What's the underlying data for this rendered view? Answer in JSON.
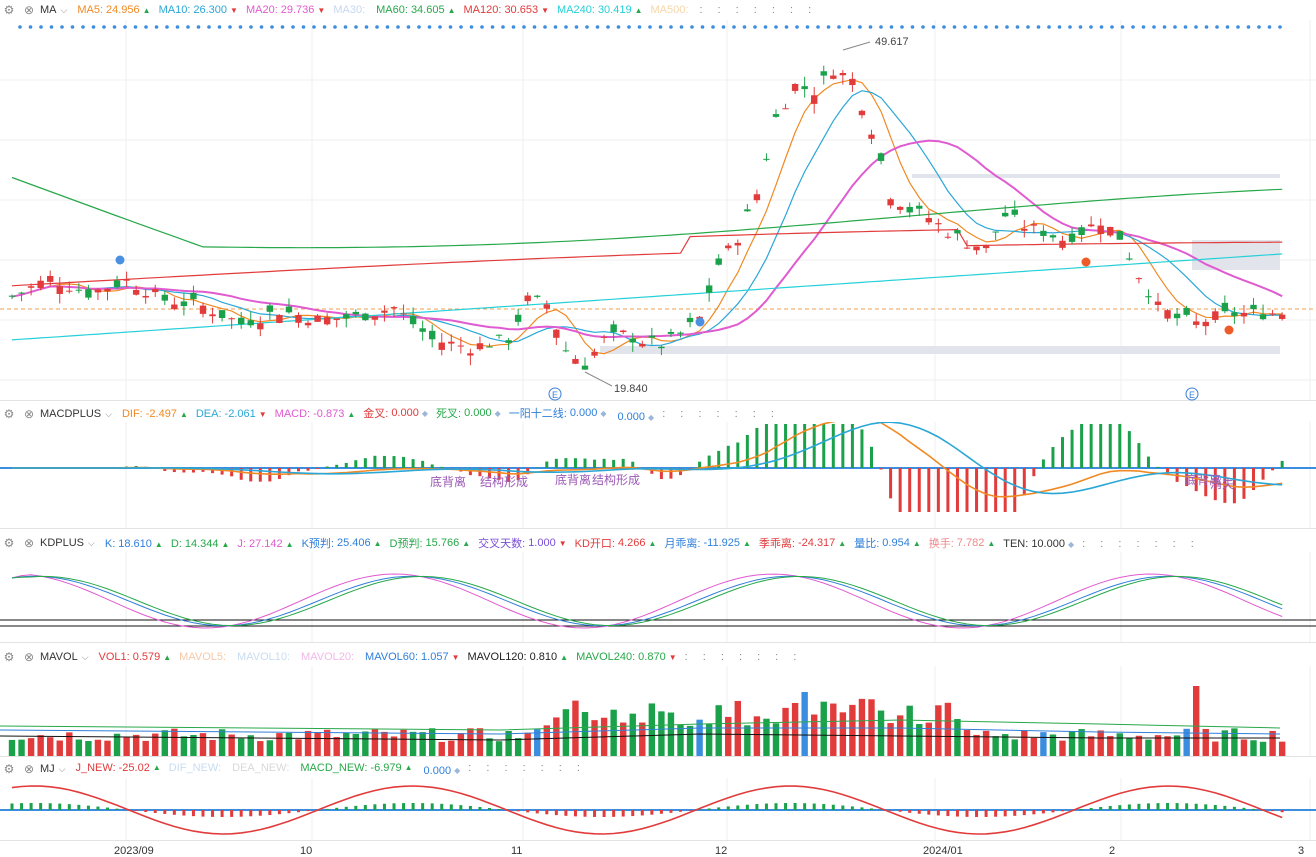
{
  "panels": {
    "ma": {
      "name": "MA",
      "items": [
        {
          "label": "MA5:",
          "value": "24.956",
          "color": "#f08a24",
          "dir": "up"
        },
        {
          "label": "MA10:",
          "value": "26.300",
          "color": "#2aa7d6",
          "dir": "down"
        },
        {
          "label": "MA20:",
          "value": "29.736",
          "color": "#e05ad0",
          "dir": "down"
        },
        {
          "label": "MA30:",
          "value": "",
          "color": "#c7d7ee",
          "dir": ""
        },
        {
          "label": "MA60:",
          "value": "34.605",
          "color": "#27a84a",
          "dir": "up"
        },
        {
          "label": "MA120:",
          "value": "30.653",
          "color": "#e23b3b",
          "dir": "down"
        },
        {
          "label": "MA240:",
          "value": "30.419",
          "color": "#25d0d8",
          "dir": "up"
        },
        {
          "label": "MA500:",
          "value": "",
          "color": "#f5d6a8",
          "dir": ""
        }
      ]
    },
    "macd": {
      "name": "MACDPLUS",
      "items": [
        {
          "label": "DIF:",
          "value": "-2.497",
          "color": "#f08a24",
          "dir": "up"
        },
        {
          "label": "DEA:",
          "value": "-2.061",
          "color": "#2aa7d6",
          "dir": "down"
        },
        {
          "label": "MACD:",
          "value": "-0.873",
          "color": "#e05ad0",
          "dir": "up"
        },
        {
          "label": "金叉:",
          "value": "0.000",
          "color": "#e23b3b",
          "dir": "dot"
        },
        {
          "label": "死叉:",
          "value": "0.000",
          "color": "#27a84a",
          "dir": "dot"
        },
        {
          "label": "一阳十二线:",
          "value": "0.000",
          "color": "#2f7fd9",
          "dir": "dot"
        },
        {
          "label": "",
          "value": "0.000",
          "color": "#2f7fd9",
          "dir": "dot"
        }
      ]
    },
    "kd": {
      "name": "KDPLUS",
      "items": [
        {
          "label": "K:",
          "value": "18.610",
          "color": "#2f7fd9",
          "dir": "up"
        },
        {
          "label": "D:",
          "value": "14.344",
          "color": "#27a84a",
          "dir": "up"
        },
        {
          "label": "J:",
          "value": "27.142",
          "color": "#e05ad0",
          "dir": "up"
        },
        {
          "label": "K预判:",
          "value": "25.406",
          "color": "#2f7fd9",
          "dir": "up"
        },
        {
          "label": "D预判:",
          "value": "15.766",
          "color": "#27a84a",
          "dir": "up"
        },
        {
          "label": "交叉天数:",
          "value": "1.000",
          "color": "#7b4fd6",
          "dir": "down"
        },
        {
          "label": "KD开口:",
          "value": "4.266",
          "color": "#e23b3b",
          "dir": "up"
        },
        {
          "label": "月乖离:",
          "value": "-11.925",
          "color": "#2f7fd9",
          "dir": "up"
        },
        {
          "label": "季乖离:",
          "value": "-24.317",
          "color": "#e23b3b",
          "dir": "up"
        },
        {
          "label": "量比:",
          "value": "0.954",
          "color": "#2f7fd9",
          "dir": "up"
        },
        {
          "label": "换手:",
          "value": "7.782",
          "color": "#f0888a",
          "dir": "up"
        },
        {
          "label": "TEN:",
          "value": "10.000",
          "color": "#333333",
          "dir": "dot"
        }
      ]
    },
    "mavol": {
      "name": "MAVOL",
      "items": [
        {
          "label": "VOL1:",
          "value": "0.579",
          "color": "#e23b3b",
          "dir": "up"
        },
        {
          "label": "MAVOL5:",
          "value": "",
          "color": "#f5c8a8",
          "dir": ""
        },
        {
          "label": "MAVOL10:",
          "value": "",
          "color": "#c8dcf0",
          "dir": ""
        },
        {
          "label": "MAVOL20:",
          "value": "",
          "color": "#f0b8e8",
          "dir": ""
        },
        {
          "label": "MAVOL60:",
          "value": "1.057",
          "color": "#2f7fd9",
          "dir": "down"
        },
        {
          "label": "MAVOL120:",
          "value": "0.810",
          "color": "#222222",
          "dir": "up"
        },
        {
          "label": "MAVOL240:",
          "value": "0.870",
          "color": "#27a84a",
          "dir": "down"
        }
      ]
    },
    "mj": {
      "name": "MJ",
      "items": [
        {
          "label": "J_NEW:",
          "value": "-25.02",
          "color": "#e23b3b",
          "dir": "up"
        },
        {
          "label": "DIF_NEW:",
          "value": "",
          "color": "#c8dcf0",
          "dir": ""
        },
        {
          "label": "DEA_NEW:",
          "value": "",
          "color": "#d8d8d8",
          "dir": ""
        },
        {
          "label": "MACD_NEW:",
          "value": "-6.979",
          "color": "#27a84a",
          "dir": "up"
        },
        {
          "label": "",
          "value": "0.000",
          "color": "#2f7fd9",
          "dir": "dot"
        }
      ]
    }
  },
  "price_labels": {
    "high": "49.617",
    "low": "19.840"
  },
  "annotations": {
    "macd_1": "底背离",
    "macd_1b": "结构形成",
    "macd_2": "底背离",
    "macd_2b": "结构形成",
    "macd_3": "底背离",
    "macd_3b": "消失",
    "e_marker": "E"
  },
  "x_axis": [
    "2023/09",
    "10",
    "11",
    "12",
    "2024/01",
    "2",
    "3"
  ],
  "colors": {
    "up": "#e23b3b",
    "down": "#1aa14a",
    "grid": "#efefef"
  }
}
